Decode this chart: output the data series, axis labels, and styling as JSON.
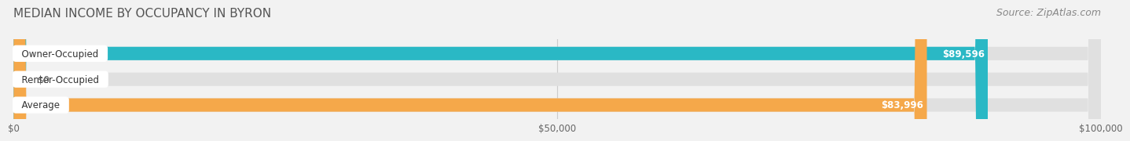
{
  "title": "MEDIAN INCOME BY OCCUPANCY IN BYRON",
  "source": "Source: ZipAtlas.com",
  "categories": [
    "Owner-Occupied",
    "Renter-Occupied",
    "Average"
  ],
  "values": [
    89596,
    0,
    83996
  ],
  "bar_colors": [
    "#2ab8c5",
    "#c5a8d4",
    "#f5a84a"
  ],
  "value_labels": [
    "$89,596",
    "$0",
    "$83,996"
  ],
  "xlim": [
    0,
    100000
  ],
  "xticks": [
    0,
    50000,
    100000
  ],
  "xtick_labels": [
    "$0",
    "$50,000",
    "$100,000"
  ],
  "background_color": "#f2f2f2",
  "bar_background_color": "#e0e0e0",
  "title_fontsize": 11,
  "source_fontsize": 9,
  "bar_height": 0.52
}
